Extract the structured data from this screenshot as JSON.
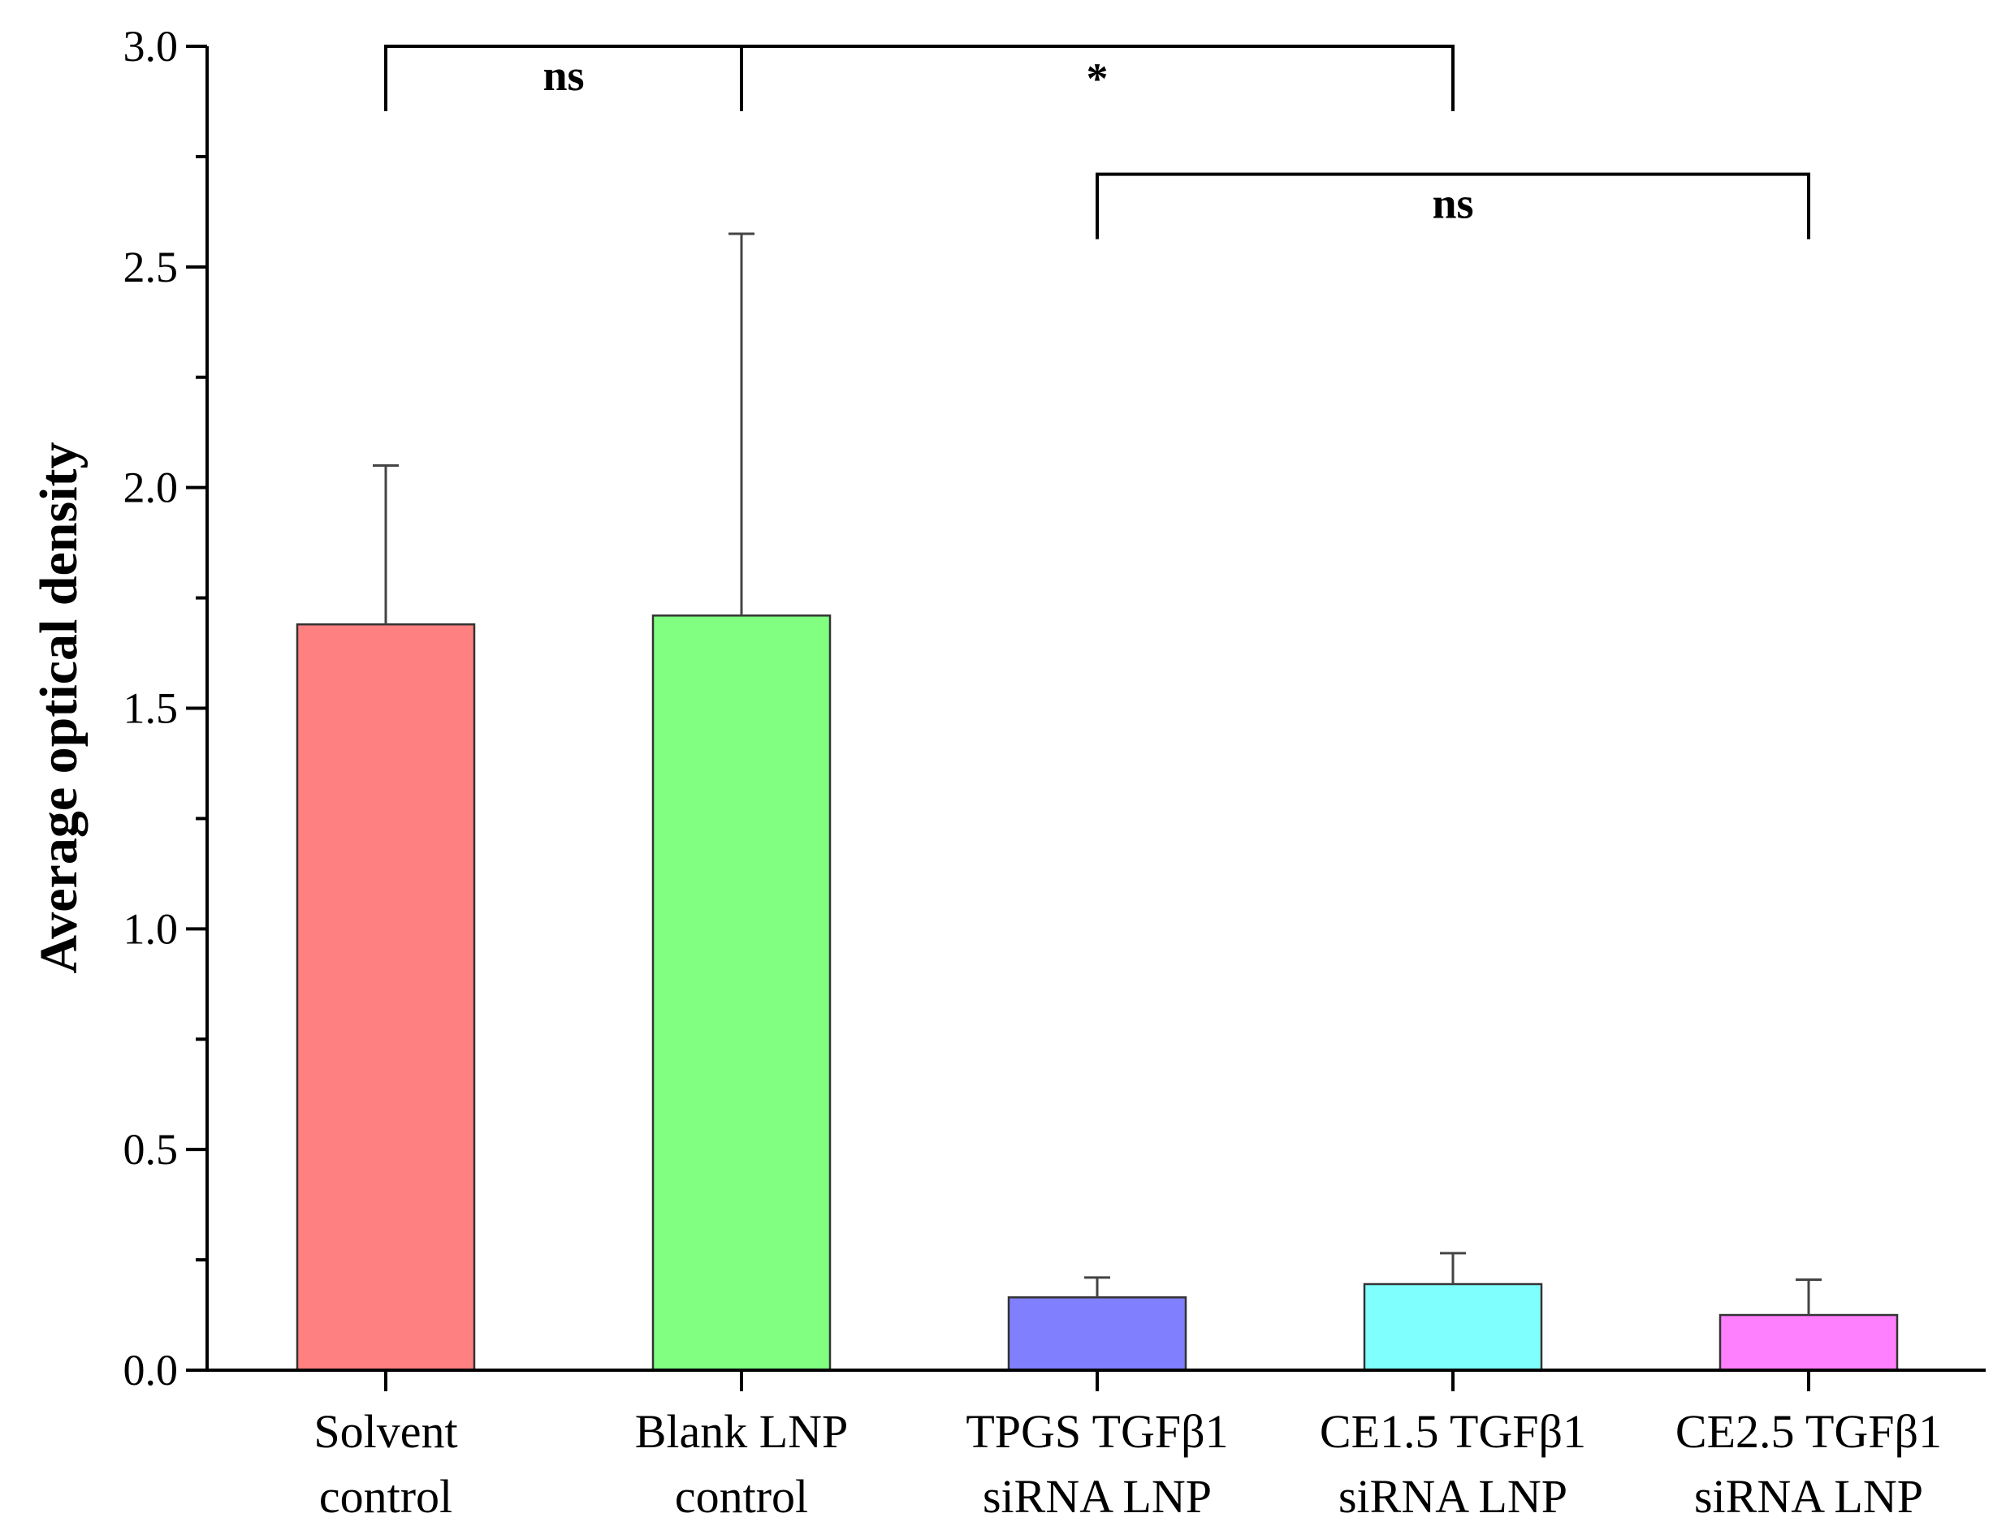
{
  "chart_data": {
    "type": "bar",
    "title": "",
    "xlabel": "",
    "ylabel": "Average optical density",
    "ylim": [
      0,
      3.0
    ],
    "yticks": [
      0.0,
      0.5,
      1.0,
      1.5,
      2.0,
      2.5,
      3.0
    ],
    "ytick_labels": [
      "0.0",
      "0.5",
      "1.0",
      "1.5",
      "2.0",
      "2.5",
      "3.0"
    ],
    "grid": false,
    "categories": [
      [
        "Solvent",
        "control"
      ],
      [
        "Blank LNP",
        "control"
      ],
      [
        "TPGS TGFβ1",
        "siRNA LNP"
      ],
      [
        "CE1.5 TGFβ1",
        "siRNA LNP"
      ],
      [
        "CE2.5 TGFβ1",
        "siRNA LNP"
      ]
    ],
    "values": [
      1.69,
      1.71,
      0.165,
      0.195,
      0.125
    ],
    "error_upper": [
      0.36,
      0.865,
      0.045,
      0.07,
      0.08
    ],
    "colors": [
      "#ff8080",
      "#80ff80",
      "#8080ff",
      "#80ffff",
      "#ff80ff"
    ],
    "significance": [
      {
        "from": 0,
        "to": 1,
        "level": 2.85,
        "label": "ns"
      },
      {
        "from": 1,
        "to": 3,
        "level": 2.85,
        "label": "*"
      },
      {
        "from": 2,
        "to": 4,
        "level": 2.7,
        "label": "ns"
      }
    ]
  }
}
